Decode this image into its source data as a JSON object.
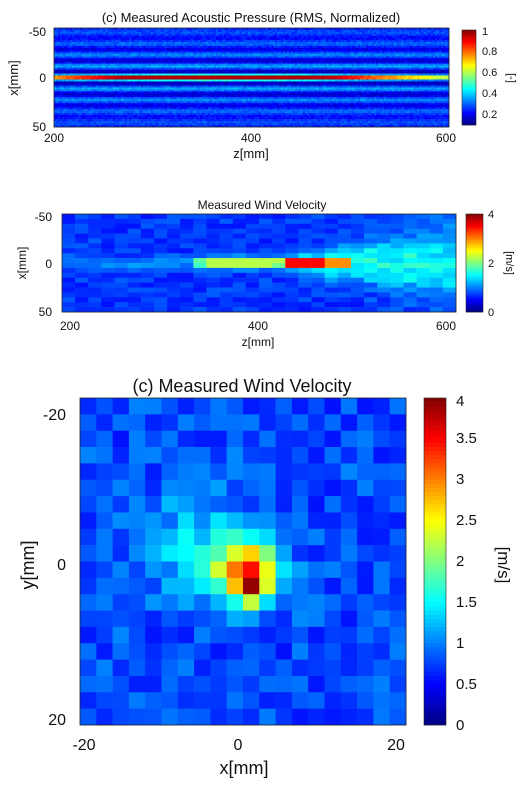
{
  "chart_data": [
    {
      "type": "heatmap",
      "title": "(c) Measured Acoustic Pressure (RMS, Normalized)",
      "xlabel": "z[mm]",
      "ylabel": "x[mm]",
      "xlim": [
        200,
        600
      ],
      "ylim": [
        -50,
        50
      ],
      "x_ticks": [
        "200",
        "400",
        "600"
      ],
      "y_ticks": [
        "-50",
        "0",
        "50"
      ],
      "colorbar": {
        "label": "[-]",
        "range": [
          0.1,
          1
        ],
        "ticks": [
          "0.2",
          "0.4",
          "0.6",
          "0.8",
          "1"
        ]
      },
      "colormap": [
        "#00007f",
        "#0000ff",
        "#007fff",
        "#00ffff",
        "#7fff7f",
        "#ffff00",
        "#ff7f00",
        "#ff0000",
        "#7f0000"
      ],
      "description_values": {
        "peak_z_mm": 380,
        "peak_x_mm": 0,
        "peak_value": 1.0,
        "background_value": 0.2
      }
    },
    {
      "type": "heatmap",
      "title": "Measured Wind Velocity",
      "xlabel": "z[mm]",
      "ylabel": "x[mm]",
      "xlim": [
        200,
        600
      ],
      "ylim": [
        -50,
        50
      ],
      "x_ticks": [
        "200",
        "400",
        "600"
      ],
      "y_ticks": [
        "-50",
        "0",
        "50"
      ],
      "colorbar": {
        "label": "[m/s]",
        "range": [
          0,
          4
        ],
        "ticks": [
          "0",
          "2",
          "4"
        ]
      },
      "colormap": [
        "#00007f",
        "#0000ff",
        "#007fff",
        "#00ffff",
        "#7fff7f",
        "#ffff00",
        "#ff7f00",
        "#ff0000",
        "#7f0000"
      ],
      "description_values": {
        "peak_z_mm": 450,
        "peak_x_mm": 0,
        "peak_value": 3.8,
        "background_value": 0.4
      }
    },
    {
      "type": "heatmap",
      "title": "(c) Measured Wind Velocity",
      "xlabel": "x[mm]",
      "ylabel": "y[mm]",
      "xlim": [
        -20,
        20
      ],
      "ylim": [
        -20,
        20
      ],
      "x_ticks": [
        "-20",
        "0",
        "20"
      ],
      "y_ticks": [
        "-20",
        "0",
        "20"
      ],
      "colorbar": {
        "label": "[m/s]",
        "range": [
          0,
          4
        ],
        "ticks": [
          "0",
          "0.5",
          "1",
          "1.5",
          "2",
          "2.5",
          "3",
          "3.5",
          "4"
        ]
      },
      "colormap": [
        "#00007f",
        "#0000ff",
        "#007fff",
        "#00ffff",
        "#7fff7f",
        "#ffff00",
        "#ff7f00",
        "#ff0000",
        "#7f0000"
      ],
      "description_values": {
        "peak_x_mm": 1,
        "peak_y_mm": 2,
        "peak_value": 4.0,
        "background_value": 0.5
      }
    }
  ]
}
